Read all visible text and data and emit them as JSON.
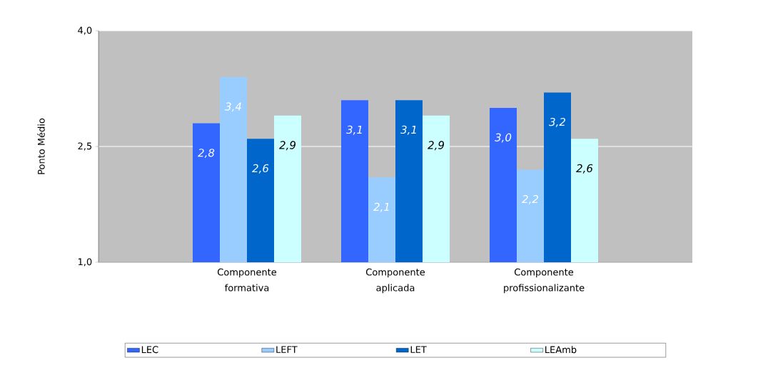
{
  "chart_data": {
    "type": "bar",
    "ylabel": "Ponto Médio",
    "categories": [
      "Componente formativa",
      "Componente aplicada",
      "Componente profissionalizante"
    ],
    "series": [
      {
        "name": "LEC",
        "color": "#3366ff",
        "values": [
          2.8,
          3.1,
          3.0
        ],
        "value_labels": [
          "2,8",
          "3,1",
          "3,0"
        ]
      },
      {
        "name": "LEFT",
        "color": "#99ccff",
        "values": [
          3.4,
          2.1,
          2.2
        ],
        "value_labels": [
          "3,4",
          "2,1",
          "2,2"
        ]
      },
      {
        "name": "LET",
        "color": "#0066cc",
        "values": [
          2.6,
          3.1,
          3.2
        ],
        "value_labels": [
          "2,6",
          "3,1",
          "3,2"
        ]
      },
      {
        "name": "LEAmb",
        "color": "#ccffff",
        "values": [
          2.9,
          2.9,
          2.6
        ],
        "value_labels": [
          "2,9",
          "2,9",
          "2,6"
        ]
      }
    ],
    "ylim": [
      1.0,
      4.0
    ],
    "yticks": [
      {
        "value": 1.0,
        "label": "1,0"
      },
      {
        "value": 2.5,
        "label": "2,5"
      },
      {
        "value": 4.0,
        "label": "4,0"
      }
    ],
    "grid": "y",
    "legend": "bottom"
  }
}
